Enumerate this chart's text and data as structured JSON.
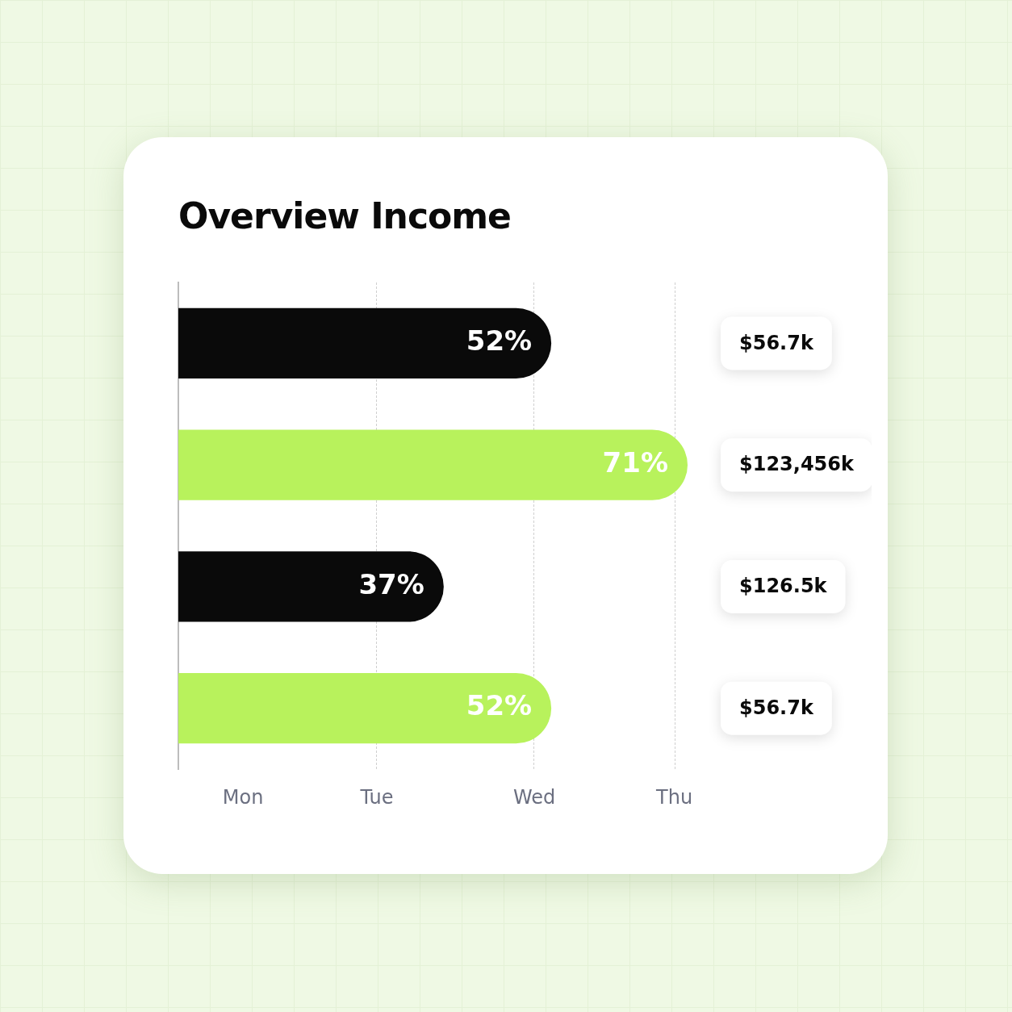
{
  "chart_data": {
    "type": "bar",
    "orientation": "horizontal",
    "title": "Overview Income",
    "categories": [
      null,
      null,
      null,
      null
    ],
    "values": [
      52,
      71,
      37,
      52
    ],
    "value_labels": [
      "52%",
      "71%",
      "37%",
      "52%"
    ],
    "colors": [
      "#0a0a0a",
      "#b8f25c",
      "#0a0a0a",
      "#b8f25c"
    ],
    "annotations": [
      "$56.7k",
      "$123,456k",
      "$126.5k",
      "$56.7k",
      "Mon",
      "Tue",
      "Wed",
      "Thu"
    ]
  }
}
